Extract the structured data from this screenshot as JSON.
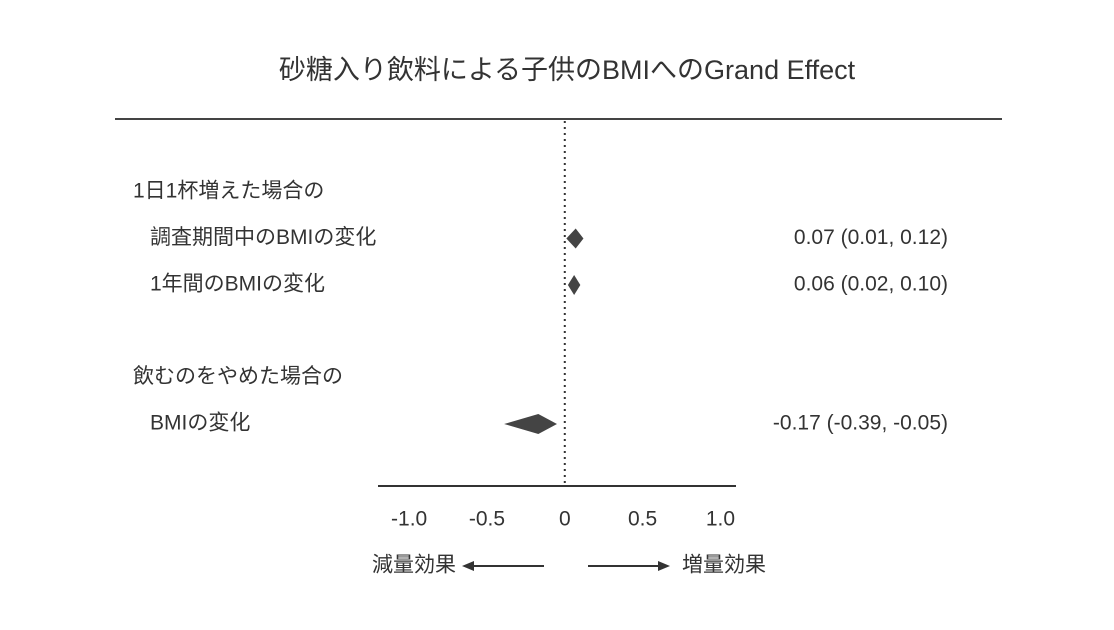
{
  "chart_data": {
    "type": "forest",
    "title": "砂糖入り飲料による子供のBMIへのGrand Effect",
    "groups": [
      {
        "name": "1日1杯増えた場合の",
        "labels": [
          "調査期間中のBMIの変化",
          "1年間のBMIの変化"
        ],
        "values": [
          0.07,
          0.06
        ],
        "lower": [
          0.01,
          0.02
        ],
        "upper": [
          0.12,
          0.1
        ],
        "value_labels": [
          "0.07 (0.01, 0.12)",
          "0.06 (0.02, 0.10)"
        ]
      },
      {
        "name": "飲むのをやめた場合の",
        "labels": [
          "BMIの変化"
        ],
        "values": [
          -0.17
        ],
        "lower": [
          -0.39
        ],
        "upper": [
          -0.05
        ],
        "value_labels": [
          "-0.17 (-0.39, -0.05)"
        ]
      }
    ],
    "color": "#444444",
    "xlim": [
      -1.2,
      1.1
    ],
    "xticks": [
      {
        "value": -1,
        "label": "-1.0"
      },
      -0.5,
      0,
      0.5,
      {
        "value": 1,
        "label": "1.0"
      }
    ],
    "ref_line": 0,
    "direction_labels": [
      "減量効果",
      "増量効果"
    ]
  }
}
